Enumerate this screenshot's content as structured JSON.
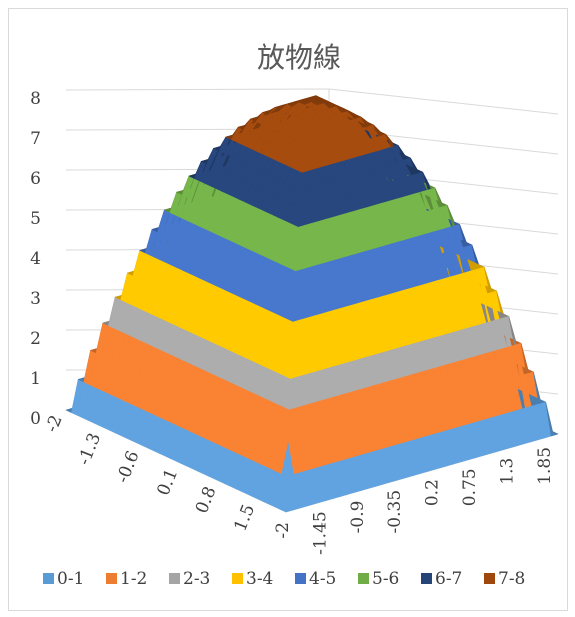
{
  "chart_data": {
    "type": "surface",
    "title": "放物線",
    "zlim": [
      0,
      8
    ],
    "z_ticks": [
      "0",
      "1",
      "2",
      "3",
      "4",
      "5",
      "6",
      "7",
      "8"
    ],
    "x_ticks": [
      "-2",
      "-1.3",
      "-0.6",
      "0.1",
      "0.8",
      "1.5"
    ],
    "y_ticks": [
      "-2",
      "-1.45",
      "-0.9",
      "-0.35",
      "0.2",
      "0.75",
      "1.3",
      "1.85"
    ],
    "legend_position": "bottom",
    "bands": [
      {
        "label": "0-1",
        "color": "#5b9bd5"
      },
      {
        "label": "1-2",
        "color": "#ed7d31"
      },
      {
        "label": "2-3",
        "color": "#a5a5a5"
      },
      {
        "label": "3-4",
        "color": "#ffc000"
      },
      {
        "label": "4-5",
        "color": "#4472c4"
      },
      {
        "label": "5-6",
        "color": "#70ad47"
      },
      {
        "label": "6-7",
        "color": "#264478"
      },
      {
        "label": "7-8",
        "color": "#9e480e"
      }
    ]
  }
}
